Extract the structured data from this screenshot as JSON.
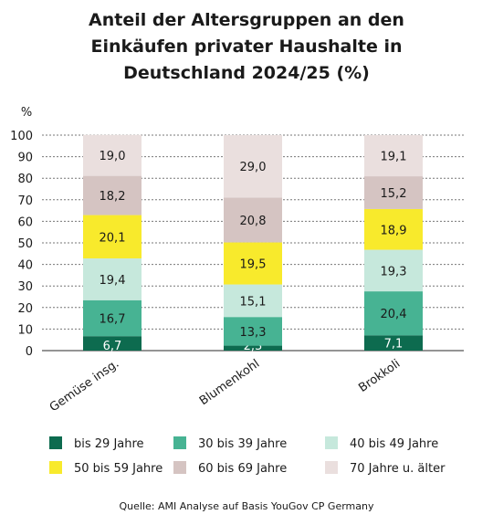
{
  "chart_data": {
    "type": "bar",
    "stacked": true,
    "title_lines": [
      "Anteil der Altersgruppen an den",
      "Einkäufen privater Haushalte in",
      "Deutschland 2024/25 (%)"
    ],
    "ylabel": "%",
    "ylim": [
      0,
      100
    ],
    "yticks": [
      "0",
      "10",
      "20",
      "30",
      "40",
      "50",
      "60",
      "70",
      "80",
      "90",
      "100"
    ],
    "grid": true,
    "categories": [
      "Gemüse insg.",
      "Blumenkohl",
      "Brokkoli"
    ],
    "series": [
      {
        "name": "bis 29 Jahre",
        "color": "#0d6b4f",
        "values": [
          6.7,
          2.3,
          7.1
        ],
        "labels": [
          "6,7",
          "2,3",
          "7,1"
        ],
        "label_color": "#ffffff"
      },
      {
        "name": "30 bis 39 Jahre",
        "color": "#47b393",
        "values": [
          16.7,
          13.3,
          20.4
        ],
        "labels": [
          "16,7",
          "13,3",
          "20,4"
        ],
        "label_color": "#1a1a1a"
      },
      {
        "name": "40 bis 49 Jahre",
        "color": "#c6e8dc",
        "values": [
          19.4,
          15.1,
          19.3
        ],
        "labels": [
          "19,4",
          "15,1",
          "19,3"
        ],
        "label_color": "#1a1a1a"
      },
      {
        "name": "50 bis 59 Jahre",
        "color": "#f8ea2c",
        "values": [
          20.1,
          19.5,
          18.9
        ],
        "labels": [
          "20,1",
          "19,5",
          "18,9"
        ],
        "label_color": "#1a1a1a"
      },
      {
        "name": "60 bis 69 Jahre",
        "color": "#d5c4c2",
        "values": [
          18.2,
          20.8,
          15.2
        ],
        "labels": [
          "18,2",
          "20,8",
          "15,2"
        ],
        "label_color": "#1a1a1a"
      },
      {
        "name": "70 Jahre u. älter",
        "color": "#eadfde",
        "values": [
          19.0,
          29.0,
          19.1
        ],
        "labels": [
          "19,0",
          "29,0",
          "19,1"
        ],
        "label_color": "#1a1a1a"
      }
    ],
    "legend_position": "bottom",
    "source": "Quelle: AMI Analyse auf Basis YouGov CP Germany"
  }
}
